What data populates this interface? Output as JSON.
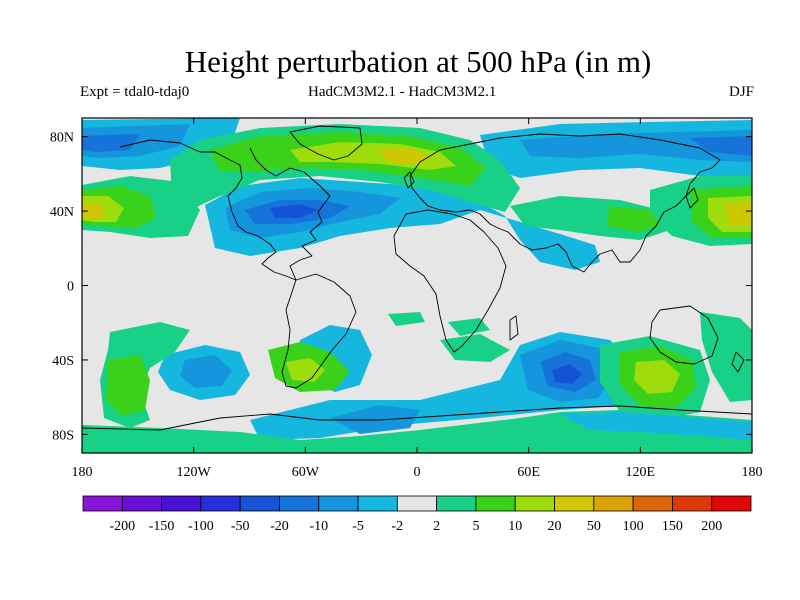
{
  "map": {
    "title": "Height perturbation at 500 hPa (in m)",
    "subtitle_left": "Expt = tdal0-tdaj0",
    "subtitle_center": "HadCM3M2.1 - HadCM3M2.1",
    "subtitle_right": "DJF",
    "projection": "cylindrical equidistant",
    "lon_range": [
      -180,
      180
    ],
    "lat_range": [
      -90,
      90
    ],
    "lat_ticks": [
      {
        "v": 80,
        "t": "80N"
      },
      {
        "v": 40,
        "t": "40N"
      },
      {
        "v": 0,
        "t": "0"
      },
      {
        "v": -40,
        "t": "40S"
      },
      {
        "v": -80,
        "t": "80S"
      }
    ],
    "lon_ticks": [
      {
        "v": -180,
        "t": "180"
      },
      {
        "v": -120,
        "t": "120W"
      },
      {
        "v": -60,
        "t": "60W"
      },
      {
        "v": 0,
        "t": "0"
      },
      {
        "v": 60,
        "t": "60E"
      },
      {
        "v": 120,
        "t": "120E"
      },
      {
        "v": 180,
        "t": "180"
      }
    ],
    "background_color": "#e6e6e6",
    "coastline_color": "#000000"
  },
  "colorbar": {
    "labels": [
      "-200",
      "-150",
      "-100",
      "-50",
      "-20",
      "-10",
      "-5",
      "-2",
      "2",
      "5",
      "10",
      "20",
      "50",
      "100",
      "150",
      "200"
    ],
    "colors": [
      "#8a14d9",
      "#6a0fd8",
      "#4a12d6",
      "#2a2ed8",
      "#1553d6",
      "#1673da",
      "#1495dc",
      "#15b7df",
      "#e6e6e6",
      "#19d087",
      "#3ad11b",
      "#9edc0b",
      "#cfc605",
      "#dba306",
      "#df6606",
      "#dd3a07",
      "#dd0707"
    ]
  }
}
